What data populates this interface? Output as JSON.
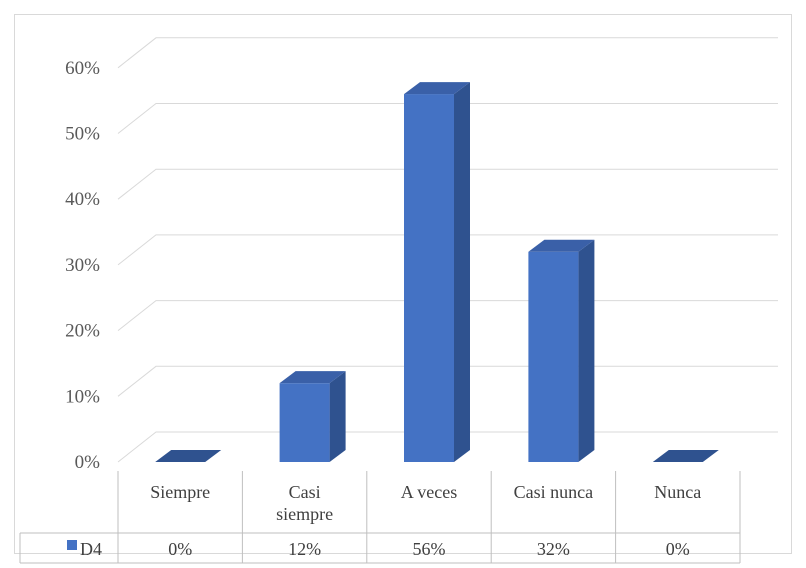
{
  "chart_data": {
    "type": "bar",
    "style": "3d-column-with-data-table",
    "categories": [
      "Siempre",
      "Casi siempre",
      "A veces",
      "Casi nunca",
      "Nunca"
    ],
    "category_lines": [
      [
        "Siempre"
      ],
      [
        "Casi",
        "siempre"
      ],
      [
        "A veces"
      ],
      [
        "Casi nunca"
      ],
      [
        "Nunca"
      ]
    ],
    "series": [
      {
        "name": "D4",
        "values": [
          0,
          12,
          56,
          32,
          0
        ],
        "color": "#4472c4",
        "side_color": "#2f528f",
        "top_color": "#3a60a8"
      }
    ],
    "data_labels": [
      "0%",
      "12%",
      "56%",
      "32%",
      "0%"
    ],
    "yticks": [
      "0%",
      "10%",
      "20%",
      "30%",
      "40%",
      "50%",
      "60%"
    ],
    "ylim": [
      0,
      60
    ],
    "grid": true,
    "legend": "data-table"
  }
}
